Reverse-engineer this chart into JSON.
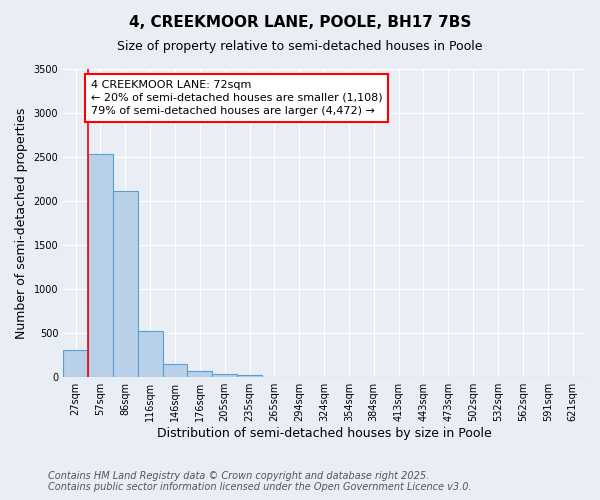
{
  "title": "4, CREEKMOOR LANE, POOLE, BH17 7BS",
  "subtitle": "Size of property relative to semi-detached houses in Poole",
  "xlabel": "Distribution of semi-detached houses by size in Poole",
  "ylabel": "Number of semi-detached properties",
  "categories": [
    "27sqm",
    "57sqm",
    "86sqm",
    "116sqm",
    "146sqm",
    "176sqm",
    "205sqm",
    "235sqm",
    "265sqm",
    "294sqm",
    "324sqm",
    "354sqm",
    "384sqm",
    "413sqm",
    "443sqm",
    "473sqm",
    "502sqm",
    "532sqm",
    "562sqm",
    "591sqm",
    "621sqm"
  ],
  "values": [
    310,
    2540,
    2120,
    520,
    150,
    75,
    35,
    28,
    0,
    0,
    0,
    0,
    0,
    0,
    0,
    0,
    0,
    0,
    0,
    0,
    0
  ],
  "bar_color": "#b8d0e8",
  "bar_edge_color": "#5a9fd4",
  "bar_edge_width": 0.8,
  "red_line_x": 1.0,
  "annotation_line1": "4 CREEKMOOR LANE: 72sqm",
  "annotation_line2": "← 20% of semi-detached houses are smaller (1,108)",
  "annotation_line3": "79% of semi-detached houses are larger (4,472) →",
  "ylim": [
    0,
    3500
  ],
  "yticks": [
    0,
    500,
    1000,
    1500,
    2000,
    2500,
    3000,
    3500
  ],
  "background_color": "#e8eef4",
  "grid_color": "#ffffff",
  "footer_line1": "Contains HM Land Registry data © Crown copyright and database right 2025.",
  "footer_line2": "Contains public sector information licensed under the Open Government Licence v3.0.",
  "title_fontsize": 11,
  "subtitle_fontsize": 9,
  "axis_label_fontsize": 9,
  "tick_fontsize": 7,
  "annotation_fontsize": 8,
  "footer_fontsize": 7
}
